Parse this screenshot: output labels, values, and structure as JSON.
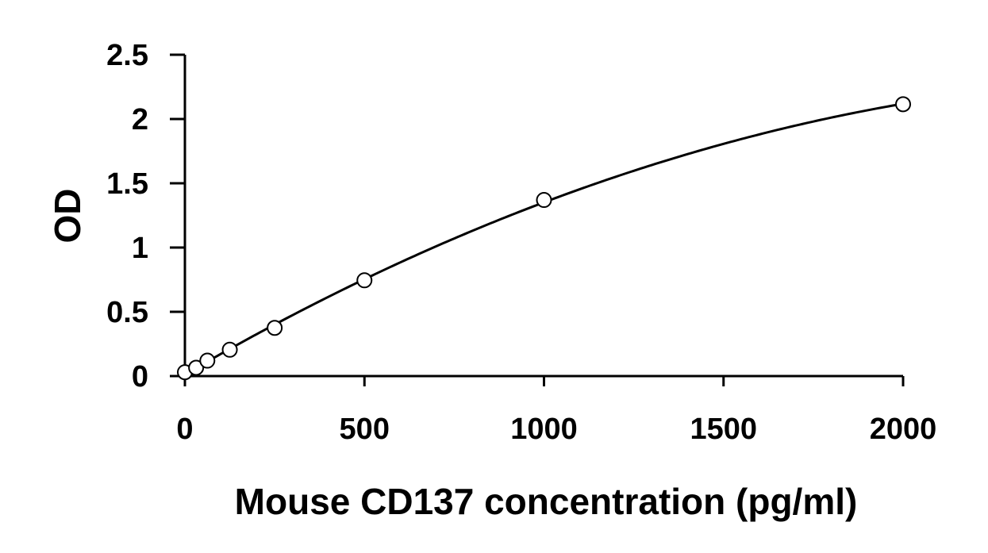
{
  "chart_data": {
    "type": "scatter",
    "title": "",
    "xlabel": "Mouse CD137 concentration (pg/ml)",
    "ylabel": "OD",
    "xlim": [
      0,
      2000
    ],
    "ylim": [
      0,
      2.5
    ],
    "x_ticks": [
      "0",
      "500",
      "1000",
      "1500",
      "2000"
    ],
    "y_ticks": [
      "0",
      "0.5",
      "1",
      "1.5",
      "2",
      "2.5"
    ],
    "grid": false,
    "series": [
      {
        "marker": "open-circle",
        "line": "smooth-fit",
        "x": [
          0,
          31.25,
          62.5,
          125,
          250,
          500,
          1000,
          2000
        ],
        "y": [
          0.03,
          0.065,
          0.12,
          0.205,
          0.375,
          0.745,
          1.37,
          2.115
        ]
      }
    ],
    "colors": {
      "line": "#000000",
      "marker_fill": "#ffffff",
      "marker_stroke": "#000000"
    }
  }
}
